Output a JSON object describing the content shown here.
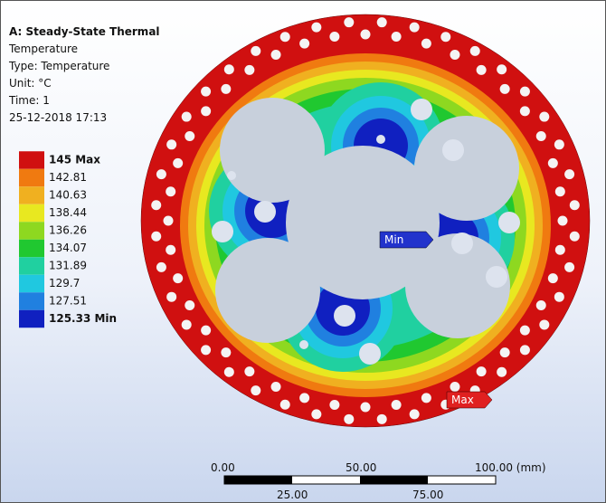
{
  "header": {
    "title": "A: Steady-State Thermal",
    "lines": [
      "Temperature",
      "Type: Temperature",
      "Unit: °C",
      "Time: 1",
      "25-12-2018 17:13"
    ]
  },
  "legend": [
    {
      "label": "145 Max",
      "color": "#d01010"
    },
    {
      "label": "142.81",
      "color": "#f07a10"
    },
    {
      "label": "140.63",
      "color": "#f0b020"
    },
    {
      "label": "138.44",
      "color": "#e8e820"
    },
    {
      "label": "136.26",
      "color": "#8ed820"
    },
    {
      "label": "134.07",
      "color": "#20c830"
    },
    {
      "label": "131.89",
      "color": "#20d0a0"
    },
    {
      "label": "129.7",
      "color": "#20c8e0"
    },
    {
      "label": "127.51",
      "color": "#2080e0"
    },
    {
      "label": "125.33 Min",
      "color": "#1020c0"
    }
  ],
  "probes": {
    "min": "Min",
    "max": "Max"
  },
  "scale": {
    "top": [
      "0.00",
      "50.00",
      "100.00 (mm)"
    ],
    "bottom": [
      "25.00",
      "75.00"
    ]
  }
}
